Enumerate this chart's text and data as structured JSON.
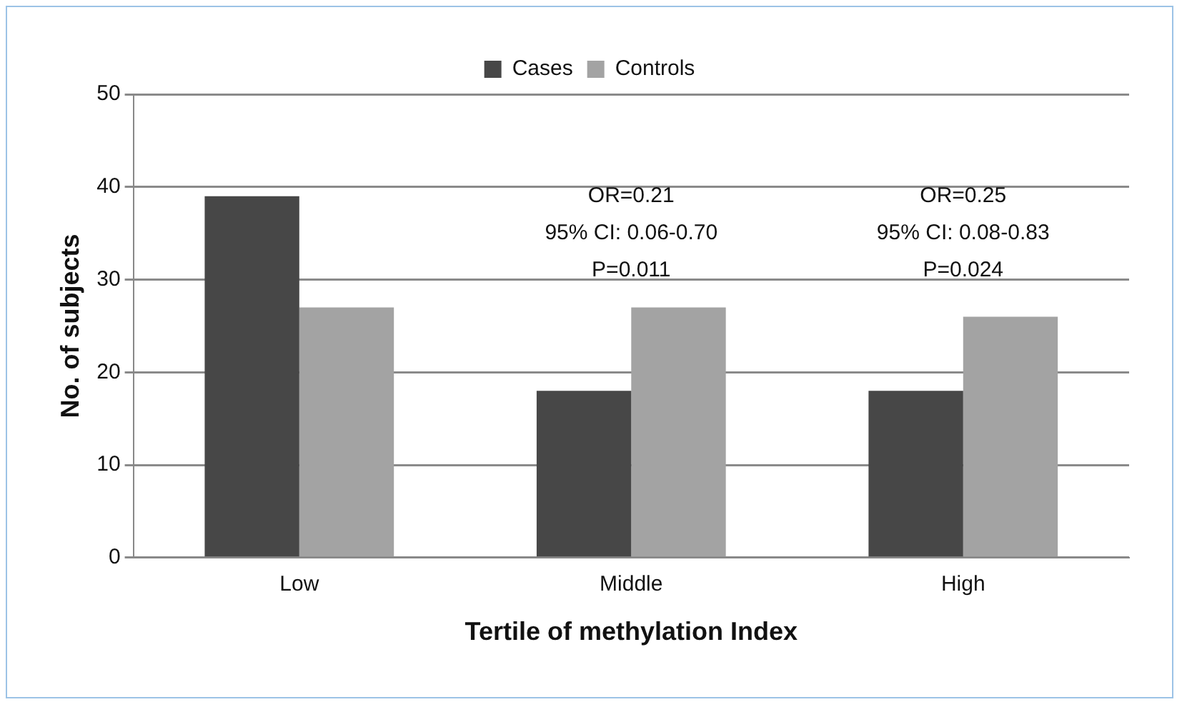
{
  "chart_data": {
    "type": "bar",
    "xlabel": "Tertile of methylation Index",
    "ylabel": "No. of subjects",
    "categories": [
      "Low",
      "Middle",
      "High"
    ],
    "series": [
      {
        "name": "Cases",
        "color": "#474747",
        "values": [
          39,
          18,
          18
        ]
      },
      {
        "name": "Controls",
        "color": "#a3a3a3",
        "values": [
          27,
          27,
          26
        ]
      }
    ],
    "ylim": [
      0,
      50
    ],
    "yticks": [
      0,
      10,
      20,
      30,
      40,
      50
    ],
    "grid": "y",
    "legend": "top",
    "annotations": [
      "OR=0.21\n95% CI: 0.06-0.70\nP=0.011",
      "OR=0.25\n95% CI: 0.08-0.83\nP=0.024"
    ]
  }
}
